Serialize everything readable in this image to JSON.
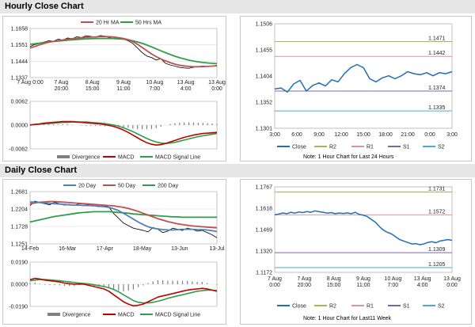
{
  "sections": {
    "hourly_title": "Hourly Close Chart",
    "daily_title": "Daily Close Chart"
  },
  "colors": {
    "close": "#1f6fb5",
    "r2": "#9bbb59",
    "r1": "#d99694",
    "s1": "#8064a2",
    "s2": "#4bacc6",
    "ma20": "#4f81bd",
    "ma50": "#c0504d",
    "ma200": "#2e9e48",
    "macd": "#c00000",
    "signal": "#2e9e48",
    "divergence": "#808080",
    "price": "#111111"
  },
  "chart_data": [
    {
      "id": "hourly_price",
      "type": "line",
      "legend": [
        "20 Hr MA",
        "50 Hrs MA"
      ],
      "y_ticks": [
        "1.1658",
        "1.1551",
        "1.1444",
        "1.1337"
      ],
      "ylim": [
        1.1337,
        1.1658
      ],
      "x_ticks": [
        [
          "7 Aug 0:00",
          ""
        ],
        [
          "7 Aug",
          "20:00"
        ],
        [
          "8 Aug",
          "15:00"
        ],
        [
          "9 Aug",
          "11:00"
        ],
        [
          "10 Aug",
          "7:00"
        ],
        [
          "13 Aug",
          "4:00"
        ],
        [
          "13 Aug",
          "0:00"
        ]
      ],
      "price": [
        1.154,
        1.1553,
        1.156,
        1.157,
        1.1578,
        1.1574,
        1.1588,
        1.1582,
        1.1596,
        1.159,
        1.1604,
        1.1599,
        1.161,
        1.1606,
        1.16,
        1.1612,
        1.1608,
        1.1598,
        1.1604,
        1.1592,
        1.1588,
        1.1578,
        1.156,
        1.153,
        1.15,
        1.1478,
        1.1468,
        1.1452,
        1.146,
        1.143,
        1.142,
        1.1412,
        1.1404,
        1.14,
        1.1398,
        1.1405,
        1.1409,
        1.1412,
        1.141,
        1.1413,
        1.1418
      ],
      "ma20": [
        1.153,
        1.154,
        1.1551,
        1.156,
        1.1568,
        1.1573,
        1.1578,
        1.1583,
        1.1587,
        1.1591,
        1.1594,
        1.1597,
        1.16,
        1.1602,
        1.1603,
        1.1605,
        1.1605,
        1.1604,
        1.1602,
        1.1598,
        1.1593,
        1.1585,
        1.1572,
        1.1555,
        1.1534,
        1.1513,
        1.1492,
        1.1474,
        1.1459,
        1.1446,
        1.1435,
        1.1425,
        1.1418,
        1.1413,
        1.141,
        1.1408,
        1.1408,
        1.1409,
        1.141,
        1.1412,
        1.1414
      ],
      "ma50": [
        1.1555,
        1.1558,
        1.1562,
        1.1566,
        1.157,
        1.1573,
        1.1576,
        1.1579,
        1.1582,
        1.1584,
        1.1586,
        1.1588,
        1.159,
        1.1591,
        1.1592,
        1.1593,
        1.1593,
        1.1593,
        1.1592,
        1.159,
        1.1588,
        1.1584,
        1.1578,
        1.157,
        1.1561,
        1.155,
        1.1538,
        1.1525,
        1.1512,
        1.15,
        1.1488,
        1.1477,
        1.1467,
        1.1459,
        1.1451,
        1.1445,
        1.144,
        1.1436,
        1.1433,
        1.143,
        1.1428
      ]
    },
    {
      "id": "hourly_macd",
      "type": "line",
      "legend": [
        "Divergence",
        "MACD",
        "MACD Signal Line"
      ],
      "y_ticks": [
        "0.0062",
        "0.0000",
        "-0.0062"
      ],
      "ylim": [
        -0.0062,
        0.0062
      ],
      "macd": [
        0.0,
        0.0002,
        0.0003,
        0.0005,
        0.0006,
        0.0007,
        0.0008,
        0.0009,
        0.0009,
        0.0009,
        0.0008,
        0.0007,
        0.0006,
        0.0005,
        0.0004,
        0.0003,
        0.0001,
        -0.0001,
        -0.0004,
        -0.0008,
        -0.0013,
        -0.0019,
        -0.0026,
        -0.0033,
        -0.004,
        -0.0046,
        -0.005,
        -0.0052,
        -0.0051,
        -0.0048,
        -0.0044,
        -0.004,
        -0.0036,
        -0.0032,
        -0.0029,
        -0.0026,
        -0.0024,
        -0.0022,
        -0.0021,
        -0.002,
        -0.0019
      ],
      "signal": [
        0.0001,
        0.0001,
        0.0002,
        0.0003,
        0.0004,
        0.0005,
        0.0006,
        0.0007,
        0.0007,
        0.0008,
        0.0008,
        0.0008,
        0.0008,
        0.0007,
        0.0006,
        0.0005,
        0.0004,
        0.0002,
        0.0,
        -0.0003,
        -0.0007,
        -0.0012,
        -0.0017,
        -0.0023,
        -0.0029,
        -0.0035,
        -0.004,
        -0.0044,
        -0.0047,
        -0.0048,
        -0.0047,
        -0.0045,
        -0.0042,
        -0.0039,
        -0.0036,
        -0.0033,
        -0.003,
        -0.0028,
        -0.0026,
        -0.0024,
        -0.0022
      ]
    },
    {
      "id": "hourly_pivot",
      "type": "line",
      "y_ticks": [
        "1.1506",
        "1.1455",
        "1.1404",
        "1.1352",
        "1.1301"
      ],
      "ylim": [
        1.1301,
        1.1506
      ],
      "x_ticks": [
        "3:00",
        "6:00",
        "9:00",
        "12:00",
        "15:00",
        "18:00",
        "21:00",
        "0:00",
        "3:00"
      ],
      "levels": {
        "R2": 1.1471,
        "R1": 1.1442,
        "S1": 1.1374,
        "S2": 1.1335
      },
      "level_labels": {
        "R2": "1.1471",
        "R1": "1.1442",
        "S1": "1.1374",
        "S2": "1.1335"
      },
      "close": [
        1.1378,
        1.138,
        1.1372,
        1.1388,
        1.1395,
        1.1374,
        1.1385,
        1.139,
        1.1384,
        1.1396,
        1.1392,
        1.1408,
        1.142,
        1.1426,
        1.142,
        1.1398,
        1.1392,
        1.14,
        1.1404,
        1.1398,
        1.1404,
        1.1412,
        1.1408,
        1.1406,
        1.141,
        1.1404,
        1.141,
        1.1408,
        1.1412
      ]
    },
    {
      "id": "daily_price",
      "type": "line",
      "legend": [
        "20 Day",
        "50 Day",
        "200 Day"
      ],
      "y_ticks": [
        "1.2681",
        "1.2204",
        "1.1728",
        "1.1251"
      ],
      "ylim": [
        1.1251,
        1.2681
      ],
      "x_ticks": [
        "14-Feb",
        "16-Mar",
        "17-Apr",
        "18-May",
        "13-Jun",
        "13-Jul"
      ],
      "price": [
        1.23,
        1.242,
        1.238,
        1.235,
        1.232,
        1.239,
        1.235,
        1.231,
        1.233,
        1.23,
        1.235,
        1.234,
        1.231,
        1.229,
        1.227,
        1.23,
        1.226,
        1.208,
        1.195,
        1.182,
        1.175,
        1.168,
        1.165,
        1.162,
        1.158,
        1.17,
        1.165,
        1.156,
        1.16,
        1.168,
        1.165,
        1.162,
        1.168,
        1.165,
        1.16,
        1.162,
        1.156,
        1.15,
        1.142
      ],
      "ma20": [
        1.24,
        1.239,
        1.238,
        1.237,
        1.236,
        1.235,
        1.234,
        1.233,
        1.232,
        1.231,
        1.231,
        1.23,
        1.23,
        1.229,
        1.228,
        1.227,
        1.225,
        1.221,
        1.216,
        1.209,
        1.201,
        1.193,
        1.185,
        1.178,
        1.172,
        1.168,
        1.166,
        1.164,
        1.163,
        1.163,
        1.164,
        1.165,
        1.165,
        1.165,
        1.164,
        1.164,
        1.163,
        1.161,
        1.159
      ],
      "ma50": [
        1.235,
        1.237,
        1.239,
        1.24,
        1.241,
        1.241,
        1.24,
        1.239,
        1.238,
        1.237,
        1.236,
        1.235,
        1.234,
        1.233,
        1.232,
        1.231,
        1.23,
        1.229,
        1.227,
        1.225,
        1.222,
        1.218,
        1.214,
        1.209,
        1.204,
        1.199,
        1.194,
        1.19,
        1.186,
        1.183,
        1.18,
        1.178,
        1.176,
        1.174,
        1.173,
        1.172,
        1.171,
        1.17,
        1.169
      ],
      "ma200": [
        1.185,
        1.188,
        1.191,
        1.194,
        1.197,
        1.2,
        1.202,
        1.204,
        1.206,
        1.208,
        1.21,
        1.211,
        1.212,
        1.213,
        1.213,
        1.213,
        1.213,
        1.212,
        1.211,
        1.21,
        1.209,
        1.207,
        1.206,
        1.205,
        1.204,
        1.203,
        1.202,
        1.201,
        1.2,
        1.199,
        1.199,
        1.198,
        1.198,
        1.198,
        1.198,
        1.198,
        1.198,
        1.198,
        1.198
      ]
    },
    {
      "id": "daily_macd",
      "type": "line",
      "legend": [
        "Divergence",
        "MACD",
        "MACD Signal Line"
      ],
      "y_ticks": [
        "0.0190",
        "0.0000",
        "-0.0190"
      ],
      "ylim": [
        -0.019,
        0.019
      ],
      "macd": [
        0.004,
        0.005,
        0.0045,
        0.0035,
        0.003,
        0.0025,
        0.002,
        0.001,
        0.0005,
        0.0,
        0.0002,
        0.0,
        -0.001,
        -0.002,
        -0.003,
        -0.004,
        -0.006,
        -0.009,
        -0.012,
        -0.015,
        -0.017,
        -0.0185,
        -0.018,
        -0.017,
        -0.015,
        -0.013,
        -0.011,
        -0.01,
        -0.009,
        -0.008,
        -0.007,
        -0.006,
        -0.005,
        -0.0045,
        -0.004,
        -0.0035,
        -0.004,
        -0.005,
        -0.006
      ],
      "signal": [
        0.003,
        0.0035,
        0.004,
        0.004,
        0.0038,
        0.0034,
        0.003,
        0.0025,
        0.002,
        0.0015,
        0.001,
        0.0006,
        0.0002,
        -0.0004,
        -0.0012,
        -0.002,
        -0.003,
        -0.0045,
        -0.0065,
        -0.009,
        -0.0115,
        -0.014,
        -0.0155,
        -0.016,
        -0.016,
        -0.0155,
        -0.0145,
        -0.0135,
        -0.012,
        -0.011,
        -0.01,
        -0.009,
        -0.008,
        -0.007,
        -0.006,
        -0.0055,
        -0.005,
        -0.005,
        -0.0055
      ]
    },
    {
      "id": "daily_pivot",
      "type": "line",
      "y_ticks": [
        "1.1767",
        "1.1618",
        "1.1469",
        "1.1320",
        "1.1172"
      ],
      "ylim": [
        1.1172,
        1.1767
      ],
      "x_ticks": [
        [
          "7 Aug",
          "0:00"
        ],
        [
          "7 Aug",
          "20:00"
        ],
        [
          "8 Aug",
          "15:00"
        ],
        [
          "9 Aug",
          "11:00"
        ],
        [
          "10 Aug",
          "7:00"
        ],
        [
          "13 Aug",
          "4:00"
        ],
        [
          "13 Aug",
          "0:00"
        ]
      ],
      "levels": {
        "R2": 1.1731,
        "R1": 1.1572,
        "S1": 1.1309,
        "S2": 1.1205
      },
      "level_labels": {
        "R2": "1.1731",
        "R1": "1.1572",
        "S1": "1.1309",
        "S2": "1.1205"
      },
      "close": [
        1.1572,
        1.1578,
        1.1585,
        1.158,
        1.159,
        1.1584,
        1.1592,
        1.1588,
        1.1595,
        1.159,
        1.16,
        1.1594,
        1.159,
        1.1584,
        1.1588,
        1.158,
        1.1585,
        1.1582,
        1.1586,
        1.158,
        1.159,
        1.1575,
        1.157,
        1.156,
        1.154,
        1.152,
        1.149,
        1.1465,
        1.145,
        1.144,
        1.142,
        1.14,
        1.139,
        1.138,
        1.137,
        1.1372,
        1.1365,
        1.137,
        1.138,
        1.1385,
        1.1378,
        1.139,
        1.1395,
        1.14,
        1.1395
      ]
    }
  ],
  "legends": {
    "pivot": [
      "Close",
      "R2",
      "R1",
      "S1",
      "S2"
    ]
  },
  "notes": {
    "hourly": "Note: 1 Hour Chart for Last 24 Hours",
    "daily": "Note: 1 Hour Chart for Last11 Week"
  }
}
